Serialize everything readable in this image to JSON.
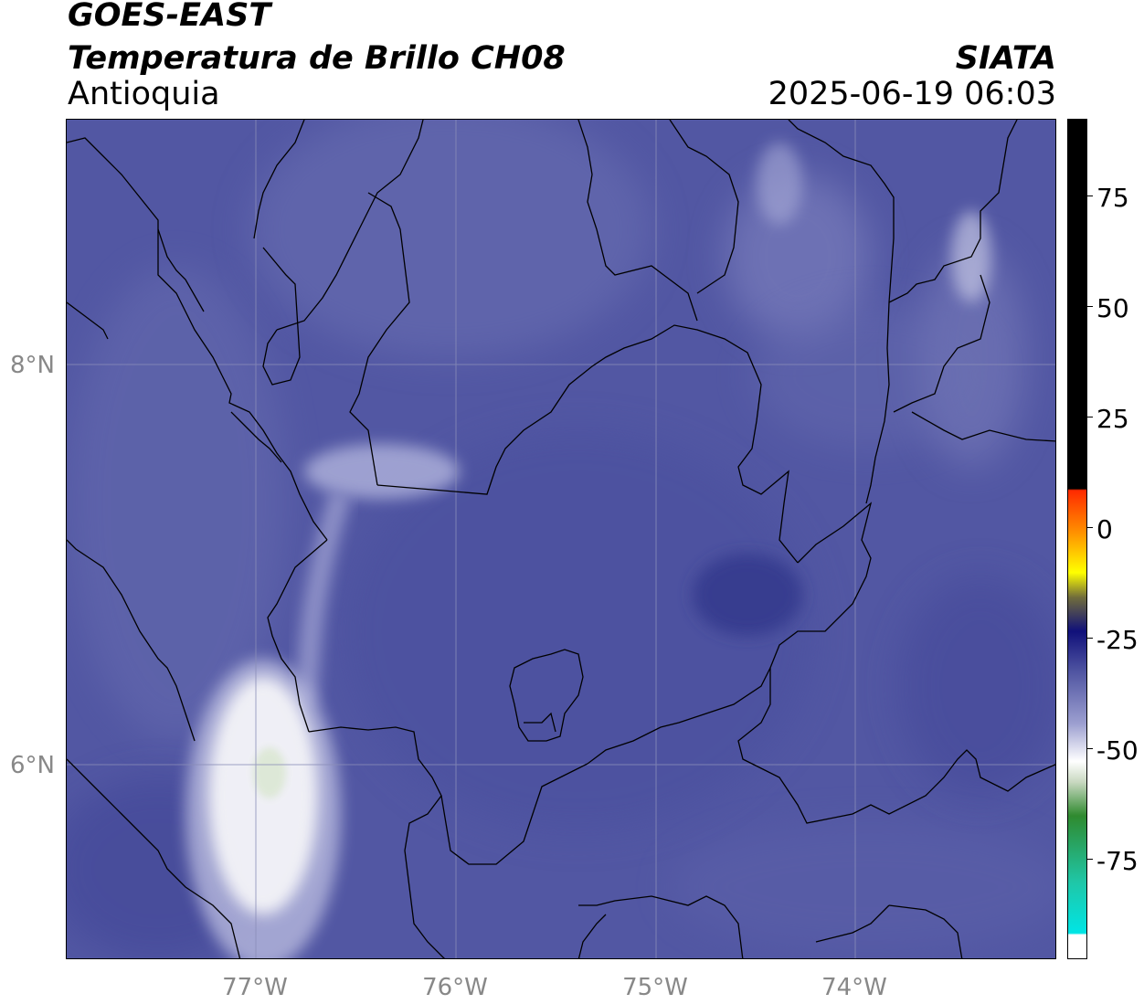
{
  "header": {
    "satellite": "GOES-EAST",
    "product": "Temperatura de Brillo CH08",
    "region": "Antioquia",
    "brand": "SIATA",
    "datetime": "2025-06-19 06:03"
  },
  "map": {
    "lat_labels": [
      "8°N",
      "6°N"
    ],
    "lon_labels": [
      "77°W",
      "76°W",
      "75°W",
      "74°W"
    ],
    "colors": {
      "background": "#5257a3",
      "darker": "#3f4596",
      "lighter": "#6b6fb2",
      "cloud_white": "#f4f4f8",
      "cloud_green": "#dde8d6",
      "grid": "#8a8db8",
      "border": "#000000"
    }
  },
  "colorbar": {
    "tick_labels": [
      "75",
      "50",
      "25",
      "0",
      "-25",
      "-50",
      "-75"
    ],
    "colors": {
      "black": "#000000",
      "red": "#ff2a00",
      "orange": "#ff8c00",
      "yellow": "#ffff00",
      "olive": "#6f6b3c",
      "navy": "#10107a",
      "lavender": "#9c9fd0",
      "white": "#ffffff",
      "green": "#2f8a2f",
      "teal": "#1fc7a8",
      "cyan": "#00e5e5"
    }
  }
}
